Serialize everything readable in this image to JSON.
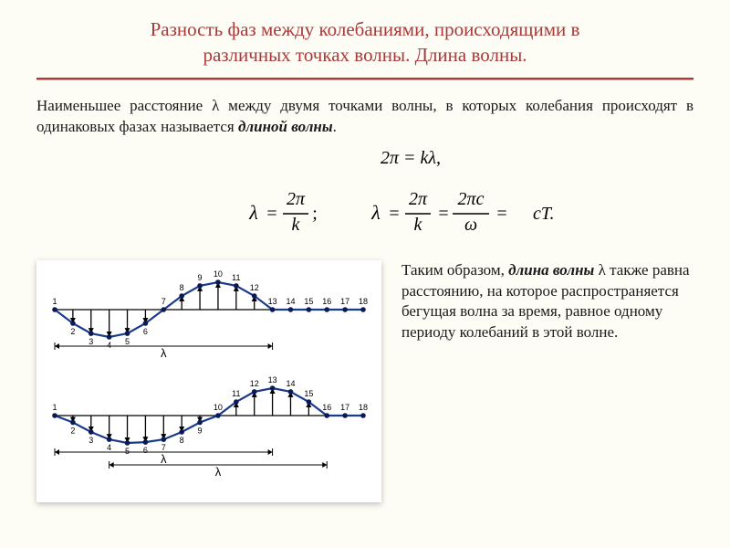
{
  "title_line1": "Разность фаз между колебаниями, происходящими в",
  "title_line2": "различных точках волны. Длина волны.",
  "definition_pre": "Наименьшее расстояние λ между двумя точками волны, в которых колебания происходят в одинаковых фазах называется ",
  "definition_em": "длиной волны",
  "definition_post": ".",
  "formulas": {
    "top": "2π = kλ,",
    "lambda1": {
      "lhs": "λ",
      "num": "2π",
      "den": "k"
    },
    "lambda2": {
      "lhs": "λ",
      "n1": "2π",
      "d1": "k",
      "n2": "2πc",
      "d2": "ω",
      "rhs": "cT."
    }
  },
  "waves": {
    "type": "line",
    "colors": {
      "line": "#1a3a8a",
      "point": "#0b1a55",
      "text": "#000000",
      "bg": "#ffffff"
    },
    "line_width": 2.2,
    "point_radius": 2.8,
    "label_fontsize": 9,
    "axis_y": 0,
    "amplitude": 30,
    "xlim": [
      0,
      17
    ],
    "labels": [
      1,
      2,
      3,
      4,
      5,
      6,
      7,
      8,
      9,
      10,
      11,
      12,
      13,
      14,
      15,
      16,
      17,
      18
    ],
    "wave1": {
      "phase_points": 12,
      "flat_after": 12,
      "values_rel": [
        0,
        -0.5,
        -0.87,
        -1,
        -0.87,
        -0.5,
        0,
        0.5,
        0.87,
        1,
        0.87,
        0.5,
        0,
        0,
        0,
        0,
        0,
        0
      ],
      "lambda_brackets": [
        [
          0,
          12
        ]
      ]
    },
    "wave2": {
      "phase_points": 12,
      "flat_after": 15,
      "values_rel": [
        0,
        -0.25,
        -0.6,
        -0.87,
        -1,
        -0.97,
        -0.87,
        -0.6,
        -0.25,
        0,
        0.5,
        0.87,
        1,
        0.87,
        0.5,
        0,
        0,
        0
      ],
      "lambda_brackets": [
        [
          0,
          12
        ],
        [
          3,
          15
        ]
      ]
    }
  },
  "side": {
    "p1a": "Таким образом, ",
    "p1b": "длина волны",
    "p1c": " λ также равна расстоянию, на которое распространяется бегущая волна за время, равное одному периоду колебаний в этой волне."
  }
}
